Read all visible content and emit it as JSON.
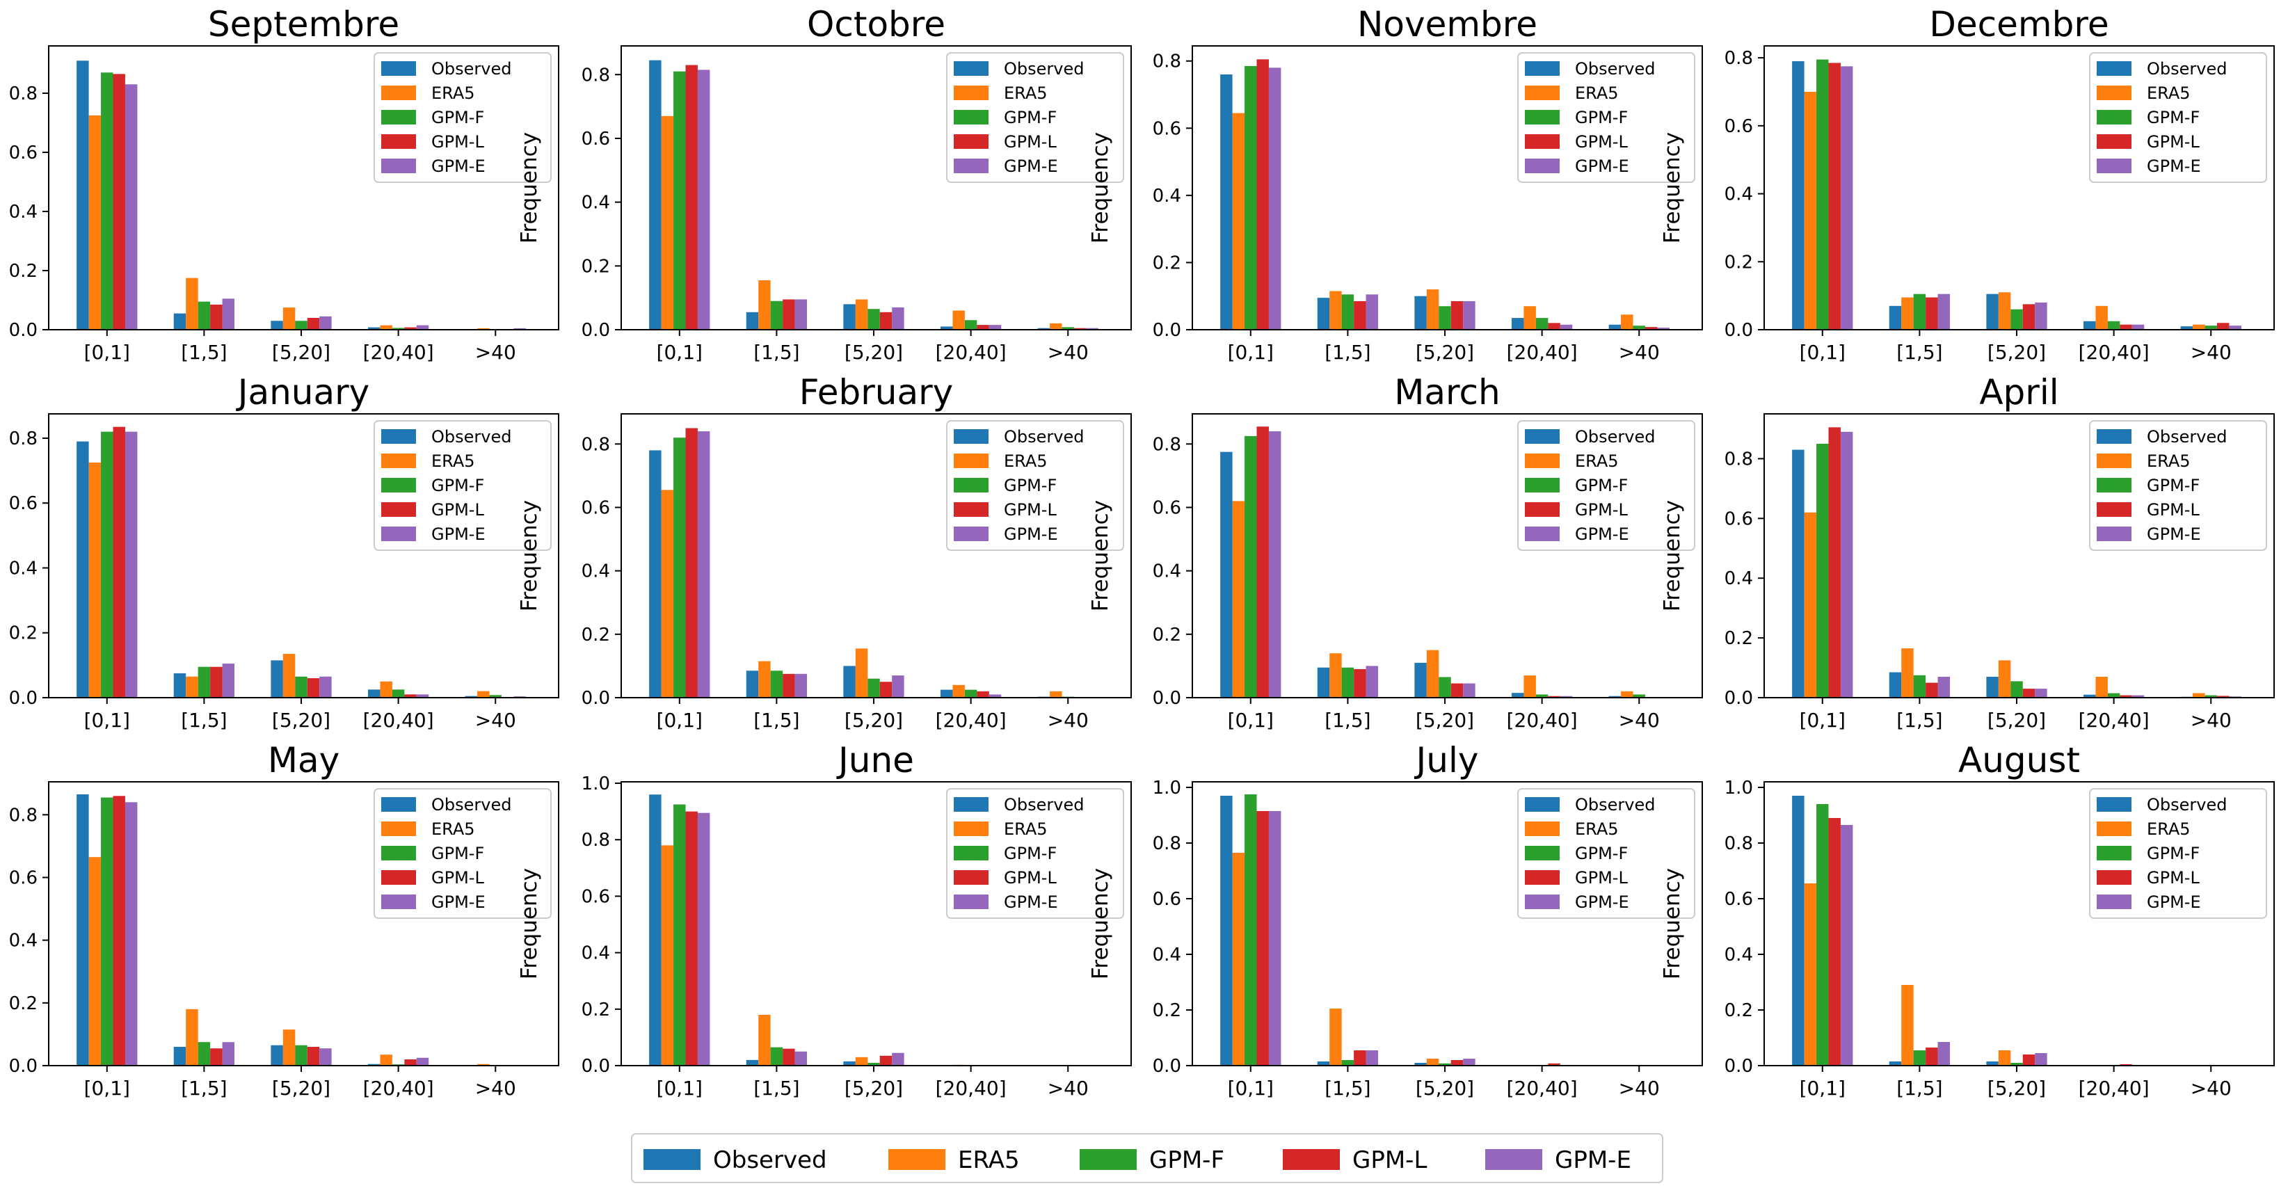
{
  "series_colors": {
    "Observed": "#1f77b4",
    "ERA5": "#ff7f0e",
    "GPM-F": "#2ca02c",
    "GPM-L": "#d62728",
    "GPM-E": "#9467bd"
  },
  "legend": {
    "items": [
      "Observed",
      "ERA5",
      "GPM-F",
      "GPM-L",
      "GPM-E"
    ]
  },
  "chart_data": [
    {
      "type": "bar",
      "title": "Septembre",
      "xlabel": "",
      "ylabel": "Frequency",
      "categories": [
        "[0,1]",
        "[1,5]",
        "[5,20]",
        "[20,40]",
        ">40"
      ],
      "ylim": [
        0,
        0.96
      ],
      "yticks": [
        0.0,
        0.2,
        0.4,
        0.6,
        0.8
      ],
      "yticklabels": [
        "0.0",
        "0.2",
        "0.4",
        "0.6",
        "0.8"
      ],
      "series": [
        {
          "name": "Observed",
          "values": [
            0.91,
            0.055,
            0.03,
            0.008,
            0.002
          ]
        },
        {
          "name": "ERA5",
          "values": [
            0.725,
            0.175,
            0.075,
            0.015,
            0.005
          ]
        },
        {
          "name": "GPM-F",
          "values": [
            0.87,
            0.095,
            0.03,
            0.006,
            0.002
          ]
        },
        {
          "name": "GPM-L",
          "values": [
            0.865,
            0.085,
            0.04,
            0.008,
            0.002
          ]
        },
        {
          "name": "GPM-E",
          "values": [
            0.83,
            0.105,
            0.045,
            0.015,
            0.005
          ]
        }
      ]
    },
    {
      "type": "bar",
      "title": "Octobre",
      "xlabel": "",
      "ylabel": "Frequency",
      "categories": [
        "[0,1]",
        "[1,5]",
        "[5,20]",
        "[20,40]",
        ">40"
      ],
      "ylim": [
        0,
        0.89
      ],
      "yticks": [
        0.0,
        0.2,
        0.4,
        0.6,
        0.8
      ],
      "yticklabels": [
        "0.0",
        "0.2",
        "0.4",
        "0.6",
        "0.8"
      ],
      "series": [
        {
          "name": "Observed",
          "values": [
            0.845,
            0.055,
            0.08,
            0.01,
            0.005
          ]
        },
        {
          "name": "ERA5",
          "values": [
            0.67,
            0.155,
            0.095,
            0.06,
            0.02
          ]
        },
        {
          "name": "GPM-F",
          "values": [
            0.81,
            0.09,
            0.065,
            0.03,
            0.008
          ]
        },
        {
          "name": "GPM-L",
          "values": [
            0.83,
            0.095,
            0.055,
            0.015,
            0.005
          ]
        },
        {
          "name": "GPM-E",
          "values": [
            0.815,
            0.095,
            0.07,
            0.015,
            0.005
          ]
        }
      ]
    },
    {
      "type": "bar",
      "title": "Novembre",
      "xlabel": "",
      "ylabel": "Frequency",
      "categories": [
        "[0,1]",
        "[1,5]",
        "[5,20]",
        "[20,40]",
        ">40"
      ],
      "ylim": [
        0,
        0.845
      ],
      "yticks": [
        0.0,
        0.2,
        0.4,
        0.6,
        0.8
      ],
      "yticklabels": [
        "0.0",
        "0.2",
        "0.4",
        "0.6",
        "0.8"
      ],
      "series": [
        {
          "name": "Observed",
          "values": [
            0.76,
            0.095,
            0.1,
            0.035,
            0.015
          ]
        },
        {
          "name": "ERA5",
          "values": [
            0.645,
            0.115,
            0.12,
            0.07,
            0.045
          ]
        },
        {
          "name": "GPM-F",
          "values": [
            0.785,
            0.105,
            0.07,
            0.035,
            0.012
          ]
        },
        {
          "name": "GPM-L",
          "values": [
            0.805,
            0.085,
            0.085,
            0.02,
            0.008
          ]
        },
        {
          "name": "GPM-E",
          "values": [
            0.78,
            0.105,
            0.085,
            0.015,
            0.006
          ]
        }
      ]
    },
    {
      "type": "bar",
      "title": "Decembre",
      "xlabel": "",
      "ylabel": "Frequency",
      "categories": [
        "[0,1]",
        "[1,5]",
        "[5,20]",
        "[20,40]",
        ">40"
      ],
      "ylim": [
        0,
        0.835
      ],
      "yticks": [
        0.0,
        0.2,
        0.4,
        0.6,
        0.8
      ],
      "yticklabels": [
        "0.0",
        "0.2",
        "0.4",
        "0.6",
        "0.8"
      ],
      "series": [
        {
          "name": "Observed",
          "values": [
            0.79,
            0.07,
            0.105,
            0.025,
            0.01
          ]
        },
        {
          "name": "ERA5",
          "values": [
            0.7,
            0.095,
            0.11,
            0.07,
            0.015
          ]
        },
        {
          "name": "GPM-F",
          "values": [
            0.795,
            0.105,
            0.06,
            0.025,
            0.012
          ]
        },
        {
          "name": "GPM-L",
          "values": [
            0.785,
            0.095,
            0.075,
            0.015,
            0.02
          ]
        },
        {
          "name": "GPM-E",
          "values": [
            0.775,
            0.105,
            0.08,
            0.015,
            0.012
          ]
        }
      ]
    },
    {
      "type": "bar",
      "title": "January",
      "xlabel": "",
      "ylabel": "Frequency",
      "categories": [
        "[0,1]",
        "[1,5]",
        "[5,20]",
        "[20,40]",
        ">40"
      ],
      "ylim": [
        0,
        0.875
      ],
      "yticks": [
        0.0,
        0.2,
        0.4,
        0.6,
        0.8
      ],
      "yticklabels": [
        "0.0",
        "0.2",
        "0.4",
        "0.6",
        "0.8"
      ],
      "series": [
        {
          "name": "Observed",
          "values": [
            0.79,
            0.075,
            0.115,
            0.025,
            0.005
          ]
        },
        {
          "name": "ERA5",
          "values": [
            0.725,
            0.065,
            0.135,
            0.05,
            0.02
          ]
        },
        {
          "name": "GPM-F",
          "values": [
            0.82,
            0.095,
            0.065,
            0.025,
            0.008
          ]
        },
        {
          "name": "GPM-L",
          "values": [
            0.835,
            0.095,
            0.06,
            0.01,
            0.002
          ]
        },
        {
          "name": "GPM-E",
          "values": [
            0.82,
            0.105,
            0.065,
            0.01,
            0.004
          ]
        }
      ]
    },
    {
      "type": "bar",
      "title": "February",
      "xlabel": "",
      "ylabel": "Frequency",
      "categories": [
        "[0,1]",
        "[1,5]",
        "[5,20]",
        "[20,40]",
        ">40"
      ],
      "ylim": [
        0,
        0.895
      ],
      "yticks": [
        0.0,
        0.2,
        0.4,
        0.6,
        0.8
      ],
      "yticklabels": [
        "0.0",
        "0.2",
        "0.4",
        "0.6",
        "0.8"
      ],
      "series": [
        {
          "name": "Observed",
          "values": [
            0.78,
            0.085,
            0.1,
            0.025,
            0.003
          ]
        },
        {
          "name": "ERA5",
          "values": [
            0.655,
            0.115,
            0.155,
            0.04,
            0.02
          ]
        },
        {
          "name": "GPM-F",
          "values": [
            0.82,
            0.085,
            0.06,
            0.025,
            0.003
          ]
        },
        {
          "name": "GPM-L",
          "values": [
            0.85,
            0.075,
            0.05,
            0.02,
            0.002
          ]
        },
        {
          "name": "GPM-E",
          "values": [
            0.84,
            0.075,
            0.07,
            0.01,
            0.002
          ]
        }
      ]
    },
    {
      "type": "bar",
      "title": "March",
      "xlabel": "",
      "ylabel": "Frequency",
      "categories": [
        "[0,1]",
        "[1,5]",
        "[5,20]",
        "[20,40]",
        ">40"
      ],
      "ylim": [
        0,
        0.895
      ],
      "yticks": [
        0.0,
        0.2,
        0.4,
        0.6,
        0.8
      ],
      "yticklabels": [
        "0.0",
        "0.2",
        "0.4",
        "0.6",
        "0.8"
      ],
      "series": [
        {
          "name": "Observed",
          "values": [
            0.775,
            0.095,
            0.11,
            0.015,
            0.005
          ]
        },
        {
          "name": "ERA5",
          "values": [
            0.62,
            0.14,
            0.15,
            0.07,
            0.02
          ]
        },
        {
          "name": "GPM-F",
          "values": [
            0.825,
            0.095,
            0.065,
            0.01,
            0.01
          ]
        },
        {
          "name": "GPM-L",
          "values": [
            0.855,
            0.09,
            0.045,
            0.005,
            0.002
          ]
        },
        {
          "name": "GPM-E",
          "values": [
            0.84,
            0.1,
            0.045,
            0.005,
            0.002
          ]
        }
      ]
    },
    {
      "type": "bar",
      "title": "April",
      "xlabel": "",
      "ylabel": "Frequency",
      "categories": [
        "[0,1]",
        "[1,5]",
        "[5,20]",
        "[20,40]",
        ">40"
      ],
      "ylim": [
        0,
        0.95
      ],
      "yticks": [
        0.0,
        0.2,
        0.4,
        0.6,
        0.8
      ],
      "yticklabels": [
        "0.0",
        "0.2",
        "0.4",
        "0.6",
        "0.8"
      ],
      "series": [
        {
          "name": "Observed",
          "values": [
            0.83,
            0.085,
            0.07,
            0.01,
            0.003
          ]
        },
        {
          "name": "ERA5",
          "values": [
            0.62,
            0.165,
            0.125,
            0.07,
            0.015
          ]
        },
        {
          "name": "GPM-F",
          "values": [
            0.85,
            0.075,
            0.055,
            0.015,
            0.008
          ]
        },
        {
          "name": "GPM-L",
          "values": [
            0.905,
            0.05,
            0.03,
            0.008,
            0.006
          ]
        },
        {
          "name": "GPM-E",
          "values": [
            0.89,
            0.07,
            0.03,
            0.008,
            0.004
          ]
        }
      ]
    },
    {
      "type": "bar",
      "title": "May",
      "xlabel": "",
      "ylabel": "Frequency",
      "categories": [
        "[0,1]",
        "[1,5]",
        "[5,20]",
        "[20,40]",
        ">40"
      ],
      "ylim": [
        0,
        0.905
      ],
      "yticks": [
        0.0,
        0.2,
        0.4,
        0.6,
        0.8
      ],
      "yticklabels": [
        "0.0",
        "0.2",
        "0.4",
        "0.6",
        "0.8"
      ],
      "series": [
        {
          "name": "Observed",
          "values": [
            0.865,
            0.06,
            0.065,
            0.005,
            0.002
          ]
        },
        {
          "name": "ERA5",
          "values": [
            0.665,
            0.18,
            0.115,
            0.035,
            0.005
          ]
        },
        {
          "name": "GPM-F",
          "values": [
            0.855,
            0.075,
            0.065,
            0.004,
            0.002
          ]
        },
        {
          "name": "GPM-L",
          "values": [
            0.86,
            0.055,
            0.06,
            0.02,
            0.002
          ]
        },
        {
          "name": "GPM-E",
          "values": [
            0.84,
            0.075,
            0.055,
            0.025,
            0.002
          ]
        }
      ]
    },
    {
      "type": "bar",
      "title": "June",
      "xlabel": "",
      "ylabel": "Frequency",
      "categories": [
        "[0,1]",
        "[1,5]",
        "[5,20]",
        "[20,40]",
        ">40"
      ],
      "ylim": [
        0,
        1.005
      ],
      "yticks": [
        0.0,
        0.2,
        0.4,
        0.6,
        0.8,
        1.0
      ],
      "yticklabels": [
        "0.0",
        "0.2",
        "0.4",
        "0.6",
        "0.8",
        "1.0"
      ],
      "series": [
        {
          "name": "Observed",
          "values": [
            0.96,
            0.02,
            0.015,
            0.002,
            0.001
          ]
        },
        {
          "name": "ERA5",
          "values": [
            0.78,
            0.18,
            0.03,
            0.003,
            0.001
          ]
        },
        {
          "name": "GPM-F",
          "values": [
            0.925,
            0.065,
            0.01,
            0.002,
            0.001
          ]
        },
        {
          "name": "GPM-L",
          "values": [
            0.9,
            0.06,
            0.035,
            0.002,
            0.001
          ]
        },
        {
          "name": "GPM-E",
          "values": [
            0.895,
            0.05,
            0.045,
            0.002,
            0.001
          ]
        }
      ]
    },
    {
      "type": "bar",
      "title": "July",
      "xlabel": "",
      "ylabel": "Frequency",
      "categories": [
        "[0,1]",
        "[1,5]",
        "[5,20]",
        "[20,40]",
        ">40"
      ],
      "ylim": [
        0,
        1.02
      ],
      "yticks": [
        0.0,
        0.2,
        0.4,
        0.6,
        0.8,
        1.0
      ],
      "yticklabels": [
        "0.0",
        "0.2",
        "0.4",
        "0.6",
        "0.8",
        "1.0"
      ],
      "series": [
        {
          "name": "Observed",
          "values": [
            0.97,
            0.015,
            0.01,
            0.002,
            0.001
          ]
        },
        {
          "name": "ERA5",
          "values": [
            0.765,
            0.205,
            0.025,
            0.002,
            0.001
          ]
        },
        {
          "name": "GPM-F",
          "values": [
            0.975,
            0.02,
            0.008,
            0.001,
            0.001
          ]
        },
        {
          "name": "GPM-L",
          "values": [
            0.915,
            0.055,
            0.02,
            0.008,
            0.001
          ]
        },
        {
          "name": "GPM-E",
          "values": [
            0.915,
            0.055,
            0.025,
            0.002,
            0.001
          ]
        }
      ]
    },
    {
      "type": "bar",
      "title": "August",
      "xlabel": "",
      "ylabel": "Frequency",
      "categories": [
        "[0,1]",
        "[1,5]",
        "[5,20]",
        "[20,40]",
        ">40"
      ],
      "ylim": [
        0,
        1.02
      ],
      "yticks": [
        0.0,
        0.2,
        0.4,
        0.6,
        0.8,
        1.0
      ],
      "yticklabels": [
        "0.0",
        "0.2",
        "0.4",
        "0.6",
        "0.8",
        "1.0"
      ],
      "series": [
        {
          "name": "Observed",
          "values": [
            0.97,
            0.015,
            0.015,
            0.002,
            0.001
          ]
        },
        {
          "name": "ERA5",
          "values": [
            0.655,
            0.29,
            0.055,
            0.002,
            0.001
          ]
        },
        {
          "name": "GPM-F",
          "values": [
            0.94,
            0.055,
            0.01,
            0.002,
            0.001
          ]
        },
        {
          "name": "GPM-L",
          "values": [
            0.89,
            0.065,
            0.04,
            0.005,
            0.001
          ]
        },
        {
          "name": "GPM-E",
          "values": [
            0.865,
            0.085,
            0.045,
            0.002,
            0.001
          ]
        }
      ]
    }
  ]
}
